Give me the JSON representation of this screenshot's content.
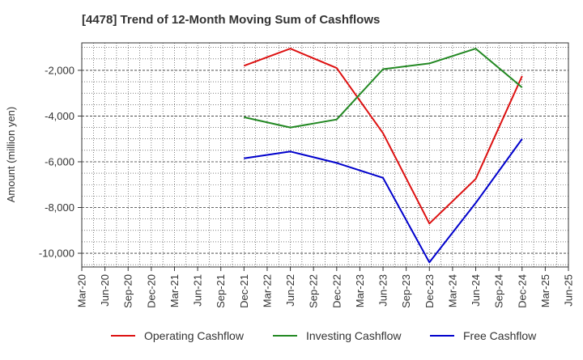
{
  "chart_data": {
    "type": "line",
    "title": "[4478]  Trend of 12-Month Moving Sum of Cashflows",
    "xlabel": "",
    "ylabel": "Amount (million yen)",
    "categories": [
      "Mar-20",
      "Jun-20",
      "Sep-20",
      "Dec-20",
      "Mar-21",
      "Jun-21",
      "Sep-21",
      "Dec-21",
      "Mar-22",
      "Jun-22",
      "Sep-22",
      "Dec-22",
      "Mar-23",
      "Jun-23",
      "Sep-23",
      "Dec-23",
      "Mar-24",
      "Jun-24",
      "Sep-24",
      "Dec-24",
      "Mar-25",
      "Jun-25"
    ],
    "ylim": [
      -10600,
      -800
    ],
    "yticks": [
      -2000,
      -4000,
      -6000,
      -8000,
      -10000
    ],
    "ytick_labels": [
      "-2,000",
      "-4,000",
      "-6,000",
      "-8,000",
      "-10,000"
    ],
    "grid": true,
    "legend_position": "bottom",
    "series": [
      {
        "name": "Operating Cashflow",
        "color": "#dd1111",
        "values": [
          null,
          null,
          null,
          null,
          null,
          null,
          null,
          -1800,
          null,
          -1050,
          null,
          -1900,
          null,
          -4750,
          null,
          -8700,
          null,
          -6750,
          null,
          -2250,
          null,
          null
        ]
      },
      {
        "name": "Investing Cashflow",
        "color": "#228822",
        "values": [
          null,
          null,
          null,
          null,
          null,
          null,
          null,
          -4050,
          null,
          -4500,
          null,
          -4150,
          null,
          -1950,
          null,
          -1700,
          null,
          -1050,
          null,
          -2750,
          null,
          null
        ]
      },
      {
        "name": "Free Cashflow",
        "color": "#0000cc",
        "values": [
          null,
          null,
          null,
          null,
          null,
          null,
          null,
          -5850,
          null,
          -5550,
          null,
          -6050,
          null,
          -6700,
          null,
          -10400,
          null,
          -7800,
          null,
          -5000,
          null,
          null
        ]
      }
    ]
  }
}
